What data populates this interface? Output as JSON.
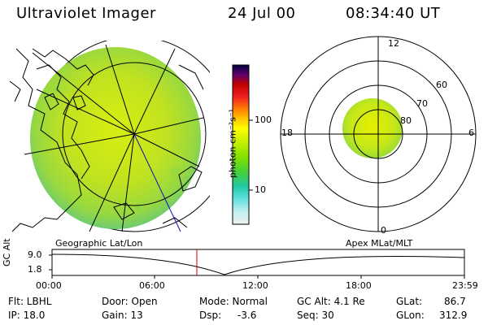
{
  "header": {
    "instrument": "Ultraviolet Imager",
    "date": "24 Jul 00",
    "time": "08:34:40 UT"
  },
  "colorbar": {
    "label": "photon cm⁻²s⁻¹",
    "ticks": [
      "100",
      "10"
    ],
    "scale": "log",
    "colors": [
      "#000040",
      "#600070",
      "#c00000",
      "#f02020",
      "#ff8000",
      "#ffc800",
      "#ffff00",
      "#c8f000",
      "#80e000",
      "#40d040",
      "#20c8a0",
      "#60e0e0",
      "#c0f0f0",
      "#f0f0f0"
    ]
  },
  "geo_panel": {
    "label": "Geographic Lat/Lon"
  },
  "polar_panel": {
    "label": "Apex MLat/MLT",
    "mlt_labels": {
      "top": "12",
      "left": "18",
      "right": "6",
      "bottom": "0"
    },
    "lat_labels": [
      "60",
      "70",
      "80"
    ]
  },
  "timeline": {
    "ylabel": "GC Alt",
    "yticks": [
      "9.0",
      "1.8"
    ],
    "xticks": [
      "00:00",
      "06:00",
      "12:00",
      "18:00",
      "23:59"
    ],
    "current_time_color": "#cc0000"
  },
  "info": {
    "filter": "Flt: LBHL",
    "ip": "IP: 18.0",
    "door": "Door: Open",
    "gain": "Gain: 13",
    "mode": "Mode: Normal",
    "dsp": "Dsp:",
    "dsp_val": "-3.6",
    "gc_alt": "GC Alt: 4.1 Re",
    "seq": "Seq: 30",
    "glat": "GLat:",
    "glat_val": "86.7",
    "glon": "GLon:",
    "glon_val": "312.9"
  }
}
